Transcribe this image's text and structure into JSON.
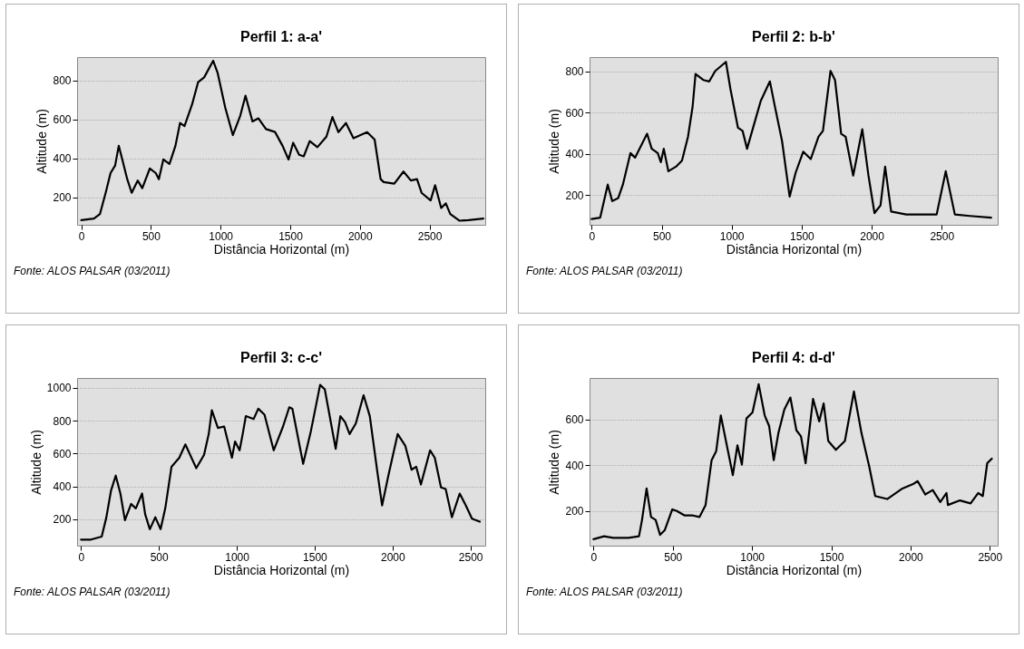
{
  "chart_data": [
    {
      "type": "line",
      "title": "Perfil 1: a-a'",
      "xlabel": "Distância Horizontal (m)",
      "ylabel": "Altitude (m)",
      "xlim": [
        -30,
        2900
      ],
      "ylim": [
        60,
        920
      ],
      "xticks": [
        0,
        500,
        1000,
        1500,
        2000,
        2500
      ],
      "yticks": [
        200,
        400,
        600,
        800
      ],
      "grid": "y",
      "annotations": [
        "Fonte: ALOS PALSAR (03/2011)"
      ],
      "x": [
        0,
        91,
        134,
        178,
        210,
        243,
        269,
        297,
        330,
        362,
        405,
        438,
        492,
        535,
        557,
        589,
        633,
        676,
        709,
        741,
        795,
        839,
        882,
        947,
        979,
        1034,
        1088,
        1142,
        1179,
        1229,
        1272,
        1326,
        1391,
        1445,
        1488,
        1521,
        1564,
        1597,
        1640,
        1695,
        1760,
        1803,
        1846,
        1900,
        1954,
        2052,
        2106,
        2149,
        2171,
        2247,
        2313,
        2366,
        2410,
        2443,
        2508,
        2540,
        2584,
        2617,
        2649,
        2714,
        2779,
        2886
      ],
      "series": [
        {
          "color": "#000000",
          "values": [
            84,
            92,
            115,
            232,
            325,
            364,
            465,
            388,
            294,
            224,
            287,
            248,
            349,
            325,
            294,
            395,
            372,
            465,
            582,
            566,
            676,
            792,
            816,
            901,
            839,
            660,
            520,
            621,
            722,
            590,
            606,
            551,
            536,
            465,
            395,
            481,
            419,
            411,
            489,
            458,
            512,
            613,
            535,
            582,
            504,
            535,
            497,
            294,
            279,
            271,
            333,
            287,
            294,
            224,
            185,
            263,
            146,
            170,
            115,
            81,
            84,
            92
          ]
        }
      ]
    },
    {
      "type": "line",
      "title": "Perfil 2: b-b'",
      "xlabel": "Distância Horizontal (m)",
      "ylabel": "Altitude (m)",
      "xlim": [
        -15,
        2900
      ],
      "ylim": [
        56,
        870
      ],
      "xticks": [
        0,
        500,
        1000,
        1500,
        2000,
        2500
      ],
      "yticks": [
        200,
        400,
        600,
        800
      ],
      "grid": "y",
      "annotations": [
        "Fonte: ALOS PALSAR (03/2011)"
      ],
      "x": [
        0,
        61,
        115,
        147,
        190,
        223,
        277,
        310,
        353,
        396,
        429,
        472,
        494,
        515,
        548,
        602,
        645,
        688,
        721,
        742,
        797,
        840,
        883,
        959,
        991,
        1045,
        1078,
        1110,
        1165,
        1208,
        1273,
        1305,
        1360,
        1414,
        1457,
        1511,
        1565,
        1620,
        1652,
        1706,
        1738,
        1782,
        1814,
        1868,
        1933,
        1977,
        2020,
        2063,
        2096,
        2139,
        2247,
        2356,
        2464,
        2529,
        2594,
        2702,
        2853
      ],
      "series": [
        {
          "color": "#000000",
          "values": [
            84,
            91,
            251,
            171,
            186,
            251,
            404,
            382,
            440,
            498,
            425,
            404,
            360,
            425,
            316,
            338,
            367,
            483,
            629,
            788,
            759,
            752,
            803,
            847,
            716,
            527,
            512,
            425,
            556,
            658,
            752,
            643,
            462,
            193,
            309,
            411,
            375,
            483,
            512,
            803,
            759,
            498,
            483,
            295,
            520,
            295,
            113,
            150,
            338,
            120,
            106,
            106,
            106,
            316,
            106,
            99,
            91
          ]
        }
      ]
    },
    {
      "type": "line",
      "title": "Perfil 3: c-c'",
      "xlabel": "Distância Horizontal (m)",
      "ylabel": "Altitude (m)",
      "xlim": [
        -25,
        2595
      ],
      "ylim": [
        40,
        1060
      ],
      "xticks": [
        0,
        500,
        1000,
        1500,
        2000,
        2500
      ],
      "yticks": [
        200,
        400,
        600,
        800,
        1000
      ],
      "grid": "y",
      "annotations": [
        "Fonte: ALOS PALSAR (03/2011)"
      ],
      "x": [
        0,
        64,
        133,
        163,
        193,
        223,
        253,
        282,
        322,
        352,
        392,
        412,
        442,
        477,
        511,
        541,
        581,
        631,
        670,
        740,
        790,
        820,
        840,
        879,
        919,
        969,
        989,
        1018,
        1038,
        1058,
        1108,
        1138,
        1178,
        1237,
        1297,
        1337,
        1357,
        1426,
        1476,
        1535,
        1565,
        1635,
        1665,
        1695,
        1724,
        1764,
        1814,
        1854,
        1903,
        1933,
        1973,
        2033,
        2082,
        2122,
        2152,
        2182,
        2241,
        2271,
        2311,
        2341,
        2381,
        2431,
        2470,
        2510,
        2560
      ],
      "series": [
        {
          "color": "#000000",
          "values": [
            77,
            77,
            95,
            213,
            376,
            466,
            357,
            195,
            294,
            267,
            357,
            231,
            140,
            213,
            140,
            267,
            520,
            575,
            656,
            511,
            593,
            719,
            864,
            756,
            765,
            575,
            674,
            620,
            719,
            828,
            810,
            873,
            837,
            620,
            765,
            882,
            873,
            538,
            738,
            1018,
            991,
            629,
            828,
            792,
            719,
            783,
            955,
            828,
            484,
            285,
            466,
            719,
            647,
            502,
            520,
            412,
            620,
            575,
            394,
            385,
            213,
            357,
            285,
            204,
            186
          ]
        }
      ]
    },
    {
      "type": "line",
      "title": "Perfil 4: d-d'",
      "xlabel": "Distância Horizontal (m)",
      "ylabel": "Altitude (m)",
      "xlim": [
        -25,
        2550
      ],
      "ylim": [
        50,
        780
      ],
      "xticks": [
        0,
        500,
        1000,
        1500,
        2000,
        2500
      ],
      "yticks": [
        200,
        400,
        600
      ],
      "grid": "y",
      "annotations": [
        "Fonte: ALOS PALSAR (03/2011)"
      ],
      "x": [
        0,
        67,
        124,
        220,
        287,
        306,
        335,
        363,
        392,
        420,
        449,
        497,
        526,
        573,
        621,
        669,
        707,
        745,
        774,
        803,
        841,
        879,
        908,
        936,
        965,
        1003,
        1042,
        1080,
        1108,
        1137,
        1166,
        1204,
        1242,
        1280,
        1309,
        1338,
        1385,
        1424,
        1452,
        1481,
        1529,
        1586,
        1643,
        1691,
        1739,
        1777,
        1853,
        1949,
        2016,
        2045,
        2093,
        2140,
        2188,
        2227,
        2236,
        2312,
        2379,
        2427,
        2456,
        2484,
        2513
      ],
      "series": [
        {
          "color": "#000000",
          "values": [
            78,
            91,
            84,
            84,
            91,
            162,
            299,
            175,
            162,
            97,
            117,
            208,
            201,
            182,
            182,
            175,
            227,
            422,
            461,
            617,
            487,
            357,
            487,
            403,
            604,
            630,
            753,
            617,
            571,
            422,
            539,
            643,
            695,
            552,
            526,
            409,
            689,
            591,
            669,
            506,
            467,
            506,
            721,
            539,
            396,
            266,
            253,
            299,
            318,
            331,
            273,
            292,
            240,
            279,
            227,
            247,
            234,
            279,
            266,
            409,
            429
          ]
        }
      ]
    }
  ]
}
